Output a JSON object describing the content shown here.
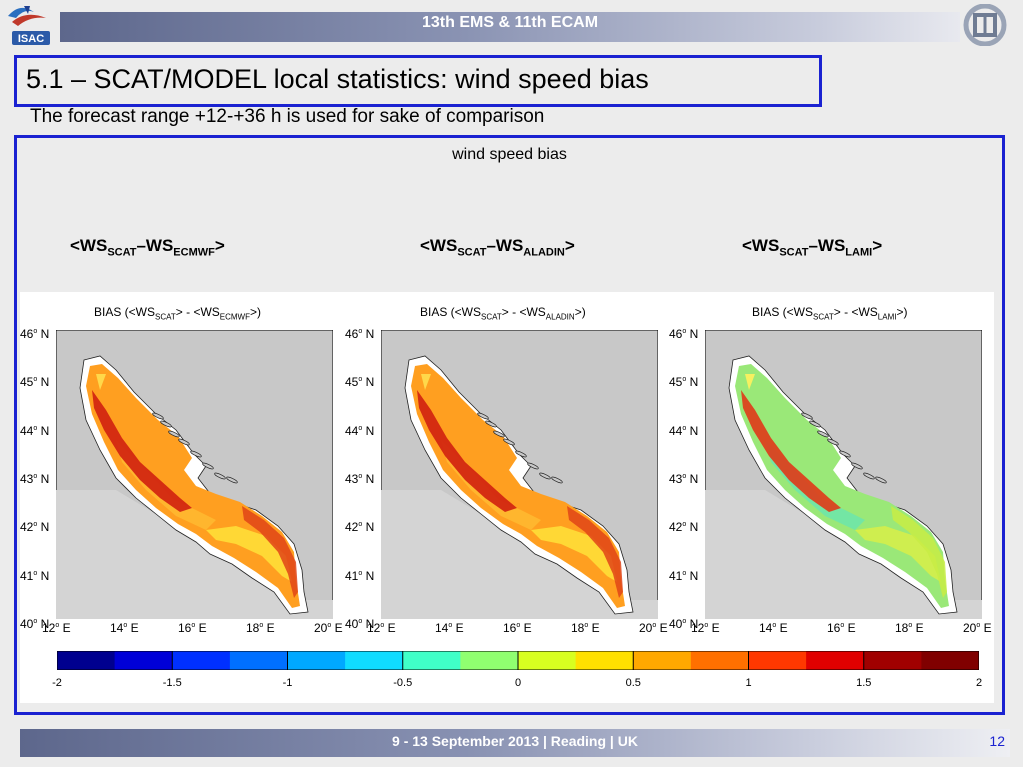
{
  "header": {
    "conference": "13th EMS & 11th ECAM",
    "left_logo": "ISAC",
    "right_logo": "cnr-logo"
  },
  "slide": {
    "title": "5.1 – SCAT/MODEL local statistics: wind speed bias",
    "subtitle": "The forecast range +12-+36 h is used for sake of comparison",
    "panel_heading": "wind speed bias"
  },
  "columns": [
    {
      "label": "<WS",
      "sub1": "SCAT",
      "mid": "–WS",
      "sub2": "ECMWF",
      "end": ">"
    },
    {
      "label": "<WS",
      "sub1": "SCAT",
      "mid": "–WS",
      "sub2": "ALADIN",
      "end": ">"
    },
    {
      "label": "<WS",
      "sub1": "SCAT",
      "mid": "–WS",
      "sub2": "LAMI",
      "end": ">"
    }
  ],
  "maps": [
    {
      "pre": "BIAS (<WS",
      "sub1": "SCAT",
      "mid": "> - <WS",
      "sub2": "ECMWF",
      "end": ">)",
      "bias_level": "high"
    },
    {
      "pre": "BIAS (<WS",
      "sub1": "SCAT",
      "mid": "> - <WS",
      "sub2": "ALADIN",
      "end": ">)",
      "bias_level": "high"
    },
    {
      "pre": "BIAS (<WS",
      "sub1": "SCAT",
      "mid": "> - <WS",
      "sub2": "LAMI",
      "end": ">)",
      "bias_level": "low"
    }
  ],
  "lat_labels": [
    "46",
    "45",
    "44",
    "43",
    "42",
    "41",
    "40"
  ],
  "lat_suffix": "N",
  "lon_labels": [
    "12",
    "14",
    "16",
    "18",
    "20"
  ],
  "lon_suffix": "E",
  "degree": "o",
  "colorbar": {
    "ticks": [
      "-2",
      "-1.5",
      "-1",
      "-0.5",
      "0",
      "0.5",
      "1",
      "1.5",
      "2"
    ],
    "min": -2,
    "max": 2
  },
  "footer": {
    "text": "9 - 13 September 2013 | Reading | UK",
    "page": "12"
  }
}
